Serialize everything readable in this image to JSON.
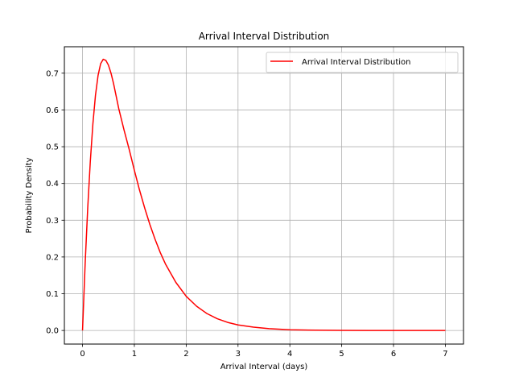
{
  "chart_data": {
    "type": "line",
    "title": "Arrival Interval Distribution",
    "xlabel": "Arrival Interval (days)",
    "ylabel": "Probability Density",
    "xlim": [
      -0.35,
      7.35
    ],
    "ylim": [
      -0.037,
      0.772
    ],
    "xticks": [
      0,
      1,
      2,
      3,
      4,
      5,
      6,
      7
    ],
    "yticks": [
      0.0,
      0.1,
      0.2,
      0.3,
      0.4,
      0.5,
      0.6,
      0.7
    ],
    "xtick_labels": [
      "0",
      "1",
      "2",
      "3",
      "4",
      "5",
      "6",
      "7"
    ],
    "ytick_labels": [
      "0.0",
      "0.1",
      "0.2",
      "0.3",
      "0.4",
      "0.5",
      "0.6",
      "0.7"
    ],
    "grid": true,
    "legend_position": "top-right",
    "series": [
      {
        "name": "Arrival Interval Distribution",
        "color": "#ff0000",
        "x": [
          0,
          0.05,
          0.1,
          0.15,
          0.2,
          0.25,
          0.3,
          0.35,
          0.4,
          0.45,
          0.5,
          0.55,
          0.6,
          0.7,
          0.8,
          0.9,
          1.0,
          1.1,
          1.2,
          1.3,
          1.4,
          1.5,
          1.6,
          1.8,
          2.0,
          2.2,
          2.4,
          2.6,
          2.8,
          3.0,
          3.3,
          3.6,
          4.0,
          4.5,
          5.0,
          5.5,
          6.0,
          6.5,
          7.0
        ],
        "y": [
          0.0,
          0.179,
          0.332,
          0.459,
          0.562,
          0.64,
          0.694,
          0.726,
          0.738,
          0.735,
          0.722,
          0.7,
          0.671,
          0.603,
          0.546,
          0.493,
          0.436,
          0.382,
          0.333,
          0.288,
          0.248,
          0.212,
          0.181,
          0.131,
          0.093,
          0.066,
          0.046,
          0.032,
          0.022,
          0.015,
          0.009,
          0.005,
          0.002,
          0.0007,
          0.0002,
          0.0001,
          0.0,
          0.0,
          0.0
        ]
      }
    ]
  }
}
